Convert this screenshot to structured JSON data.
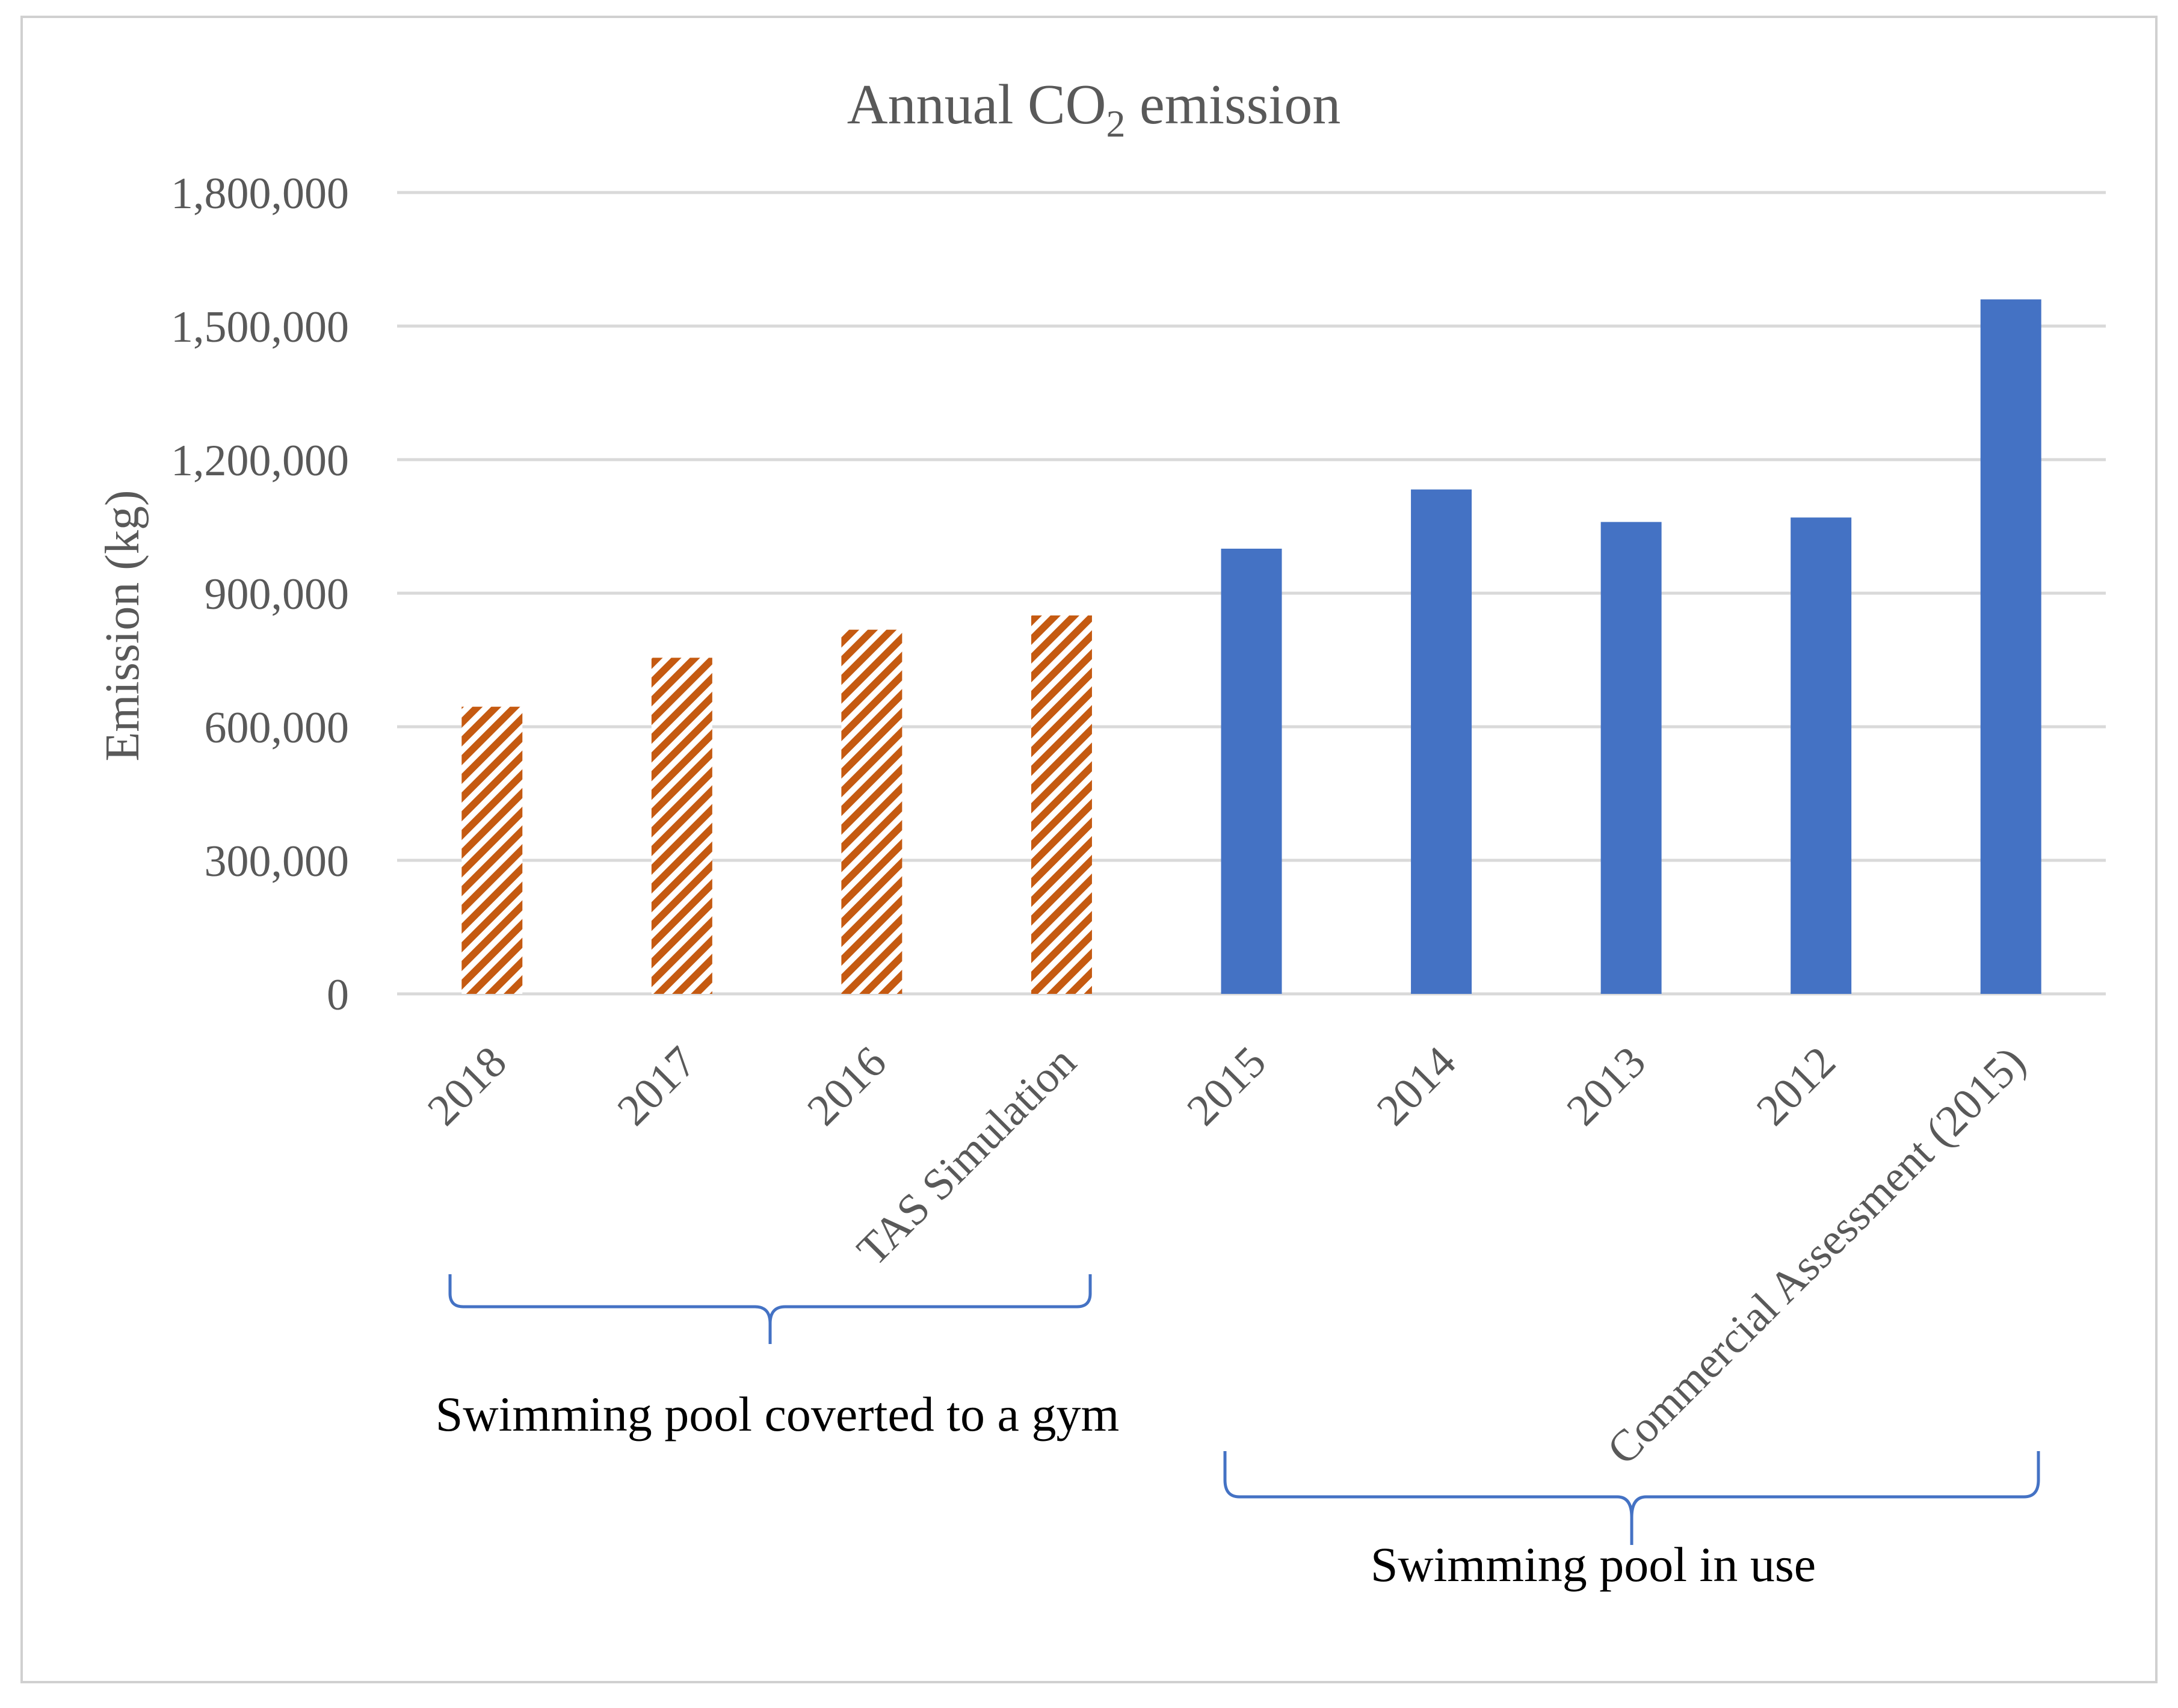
{
  "chart_data": {
    "type": "bar",
    "title_main": "Annual CO",
    "title_sub": "2",
    "title_rest": " emission",
    "ylabel": "Emission (kg)",
    "xlabel": "",
    "ylim": [
      0,
      1800000
    ],
    "yticks": [
      0,
      300000,
      600000,
      900000,
      1200000,
      1500000,
      1800000
    ],
    "ytick_labels": [
      "0",
      "300,000",
      "600,000",
      "900,000",
      "1,200,000",
      "1,500,000",
      "1,800,000"
    ],
    "grid": true,
    "categories": [
      "2018",
      "2017",
      "2016",
      "TAS Simulation",
      "2015",
      "2014",
      "2013",
      "2012",
      "Commercial Assessment (2015)"
    ],
    "values": [
      645000,
      755000,
      818000,
      850000,
      1000000,
      1133000,
      1060000,
      1070000,
      1560000
    ],
    "bar_styles": [
      "hatched",
      "hatched",
      "hatched",
      "hatched",
      "solid",
      "solid",
      "solid",
      "solid",
      "solid"
    ],
    "colors": {
      "hatched": "#c55a11",
      "solid": "#4472c4",
      "brace": "#4472c4"
    },
    "groups": [
      {
        "label": "Swimming pool coverted to a gym",
        "from": 0,
        "to": 3
      },
      {
        "label": "Swimming pool in use",
        "from": 4,
        "to": 8
      }
    ]
  }
}
